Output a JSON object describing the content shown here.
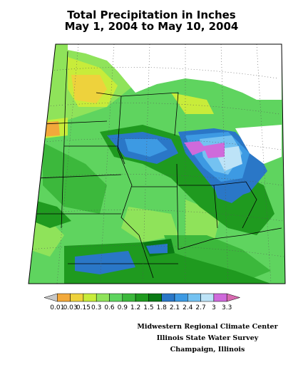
{
  "title": {
    "line1": "Total Precipitation in Inches",
    "line2": "May 1, 2004 to May 10, 2004"
  },
  "legend": {
    "labels": [
      "0.01",
      "0.03",
      "0.15",
      "0.3",
      "0.6",
      "0.9",
      "1.2",
      "1.5",
      "1.8",
      "2.1",
      "2.4",
      "2.7",
      "3",
      "3.3"
    ],
    "colors": [
      "#c8c8c8",
      "#f2a93b",
      "#eed23c",
      "#c8ec3a",
      "#8fe35a",
      "#5fd45f",
      "#3cb83c",
      "#1f9a1f",
      "#0a7a14",
      "#2a77c7",
      "#3d9ae3",
      "#74c2f1",
      "#bde3f7",
      "#cf6adb",
      "#d86ab0"
    ]
  },
  "credits": {
    "line1": "Midwestern Regional Climate Center",
    "line2": "Illinois State Water Survey",
    "line3": "Champaign, Illinois"
  }
}
